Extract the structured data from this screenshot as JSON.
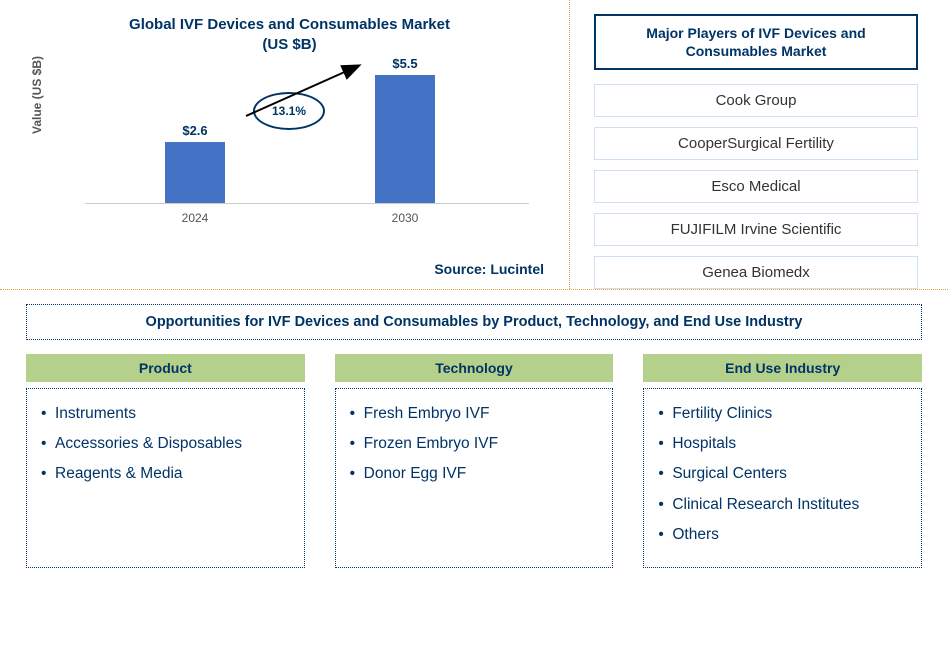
{
  "chart": {
    "title_line1": "Global IVF Devices and Consumables Market",
    "title_line2": "(US $B)",
    "ylabel": "Value (US $B)",
    "categories": [
      "2024",
      "2030"
    ],
    "values": [
      2.6,
      5.5
    ],
    "value_labels": [
      "$2.6",
      "$5.5"
    ],
    "growth_label": "13.1%",
    "bar_color": "#4472c4",
    "ymax": 6.0,
    "title_color": "#003366"
  },
  "source": "Source: Lucintel",
  "players": {
    "title": "Major Players of IVF Devices and Consumables Market",
    "list": [
      "Cook Group",
      "CooperSurgical Fertility",
      "Esco Medical",
      "FUJIFILM Irvine Scientific",
      "Genea Biomedx"
    ]
  },
  "opportunities": {
    "title": "Opportunities for IVF Devices and Consumables by Product, Technology, and End Use Industry",
    "columns": [
      {
        "header": "Product",
        "items": [
          "Instruments",
          "Accessories & Disposables",
          "Reagents & Media"
        ]
      },
      {
        "header": "Technology",
        "items": [
          "Fresh Embryo IVF",
          "Frozen Embryo IVF",
          "Donor Egg IVF"
        ]
      },
      {
        "header": "End Use Industry",
        "items": [
          "Fertility Clinics",
          "Hospitals",
          "Surgical Centers",
          "Clinical Research Institutes",
          "Others"
        ]
      }
    ]
  },
  "colors": {
    "primary": "#003366",
    "bar": "#4472c4",
    "col_header_bg": "#b5d08b",
    "dotted_border": "#e8a030"
  }
}
